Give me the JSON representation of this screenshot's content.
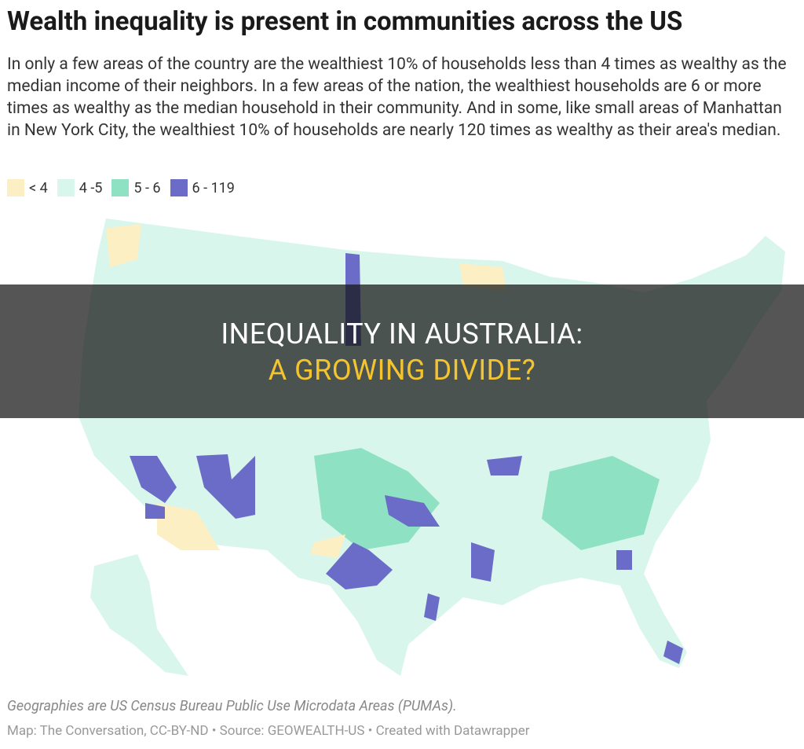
{
  "header": {
    "title": "Wealth inequality is present in communities across the US",
    "description": "In only a few areas of the country are the wealthiest 10% of households less than 4 times as wealthy as the median income of their neighbors. In a few areas of the nation, the wealthiest households are 6 or more times as wealthy as the median household in their community. And in some, like small areas of Manhattan in New York City, the wealthiest 10% of households are nearly 120 times as wealthy as their area's median."
  },
  "legend": [
    {
      "label": "< 4",
      "color": "#fcefc4"
    },
    {
      "label": "4 -5",
      "color": "#d8f6ec"
    },
    {
      "label": "5 - 6",
      "color": "#8ee1c2"
    },
    {
      "label": "6 - 119",
      "color": "#6a6cc8"
    }
  ],
  "banner": {
    "line1": "INEQUALITY IN AUSTRALIA:",
    "line2": "A GROWING DIVIDE?"
  },
  "footer": {
    "note": "Geographies are US Census Bureau Public Use Microdata Areas (PUMAs).",
    "credit": "Map: The Conversation, CC-BY-ND • Source: GEOWEALTH-US • Created with Datawrapper"
  }
}
